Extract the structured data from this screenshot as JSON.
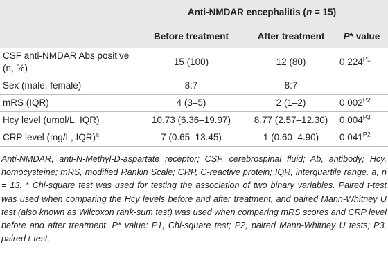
{
  "table": {
    "header": {
      "group": [
        "Anti-NMDAR encephalitis (",
        "n",
        " = 15)"
      ],
      "columns": [
        "Before treatment",
        "After treatment"
      ],
      "p_column": {
        "italic": "P",
        "rest": "* value"
      }
    },
    "rows": [
      {
        "label": "CSF anti-NMDAR Abs positive (n, %)",
        "before": "15 (100)",
        "after": "12 (80)",
        "p": "0.224",
        "p_sup": "P1"
      },
      {
        "label": "Sex (male: female)",
        "before": "8:7",
        "after": "8:7",
        "p": "–"
      },
      {
        "label": "mRS (IQR)",
        "before": "4 (3–5)",
        "after": "2 (1–2)",
        "p": "0.002",
        "p_sup": "P2"
      },
      {
        "label": "Hcy level (umol/L, IQR)",
        "before": "10.73 (6.36–19.97)",
        "after": "8.77 (2.57–12.30)",
        "p": "0.004",
        "p_sup": "P3"
      },
      {
        "label": "CRP level (mg/L, IQR)",
        "label_sup": "a",
        "before": "7 (0.65–13.45)",
        "after": "1 (0.60–4.90)",
        "p": "0.041",
        "p_sup": "P2"
      }
    ],
    "footnote": "Anti-NMDAR, anti-N-Methyl-D-aspartate receptor; CSF, cerebrospinal fluid; Ab, antibody; Hcy, homocysteine; mRS, modified Rankin Scale; CRP, C-reactive protein; IQR, interquartile range. a, n = 13. * Chi-square test was used for testing the association of two binary variables. Paired t-test was used when comparing the Hcy levels before and after treatment, and paired Mann-Whitney U test (also known as Wilcoxon rank-sum test) was used when comparing mRS scores and CRP level before and after treatment. P* value: P1, Chi-square test; P2, paired Mann-Whitney U tests; P3, paired t-test."
  }
}
